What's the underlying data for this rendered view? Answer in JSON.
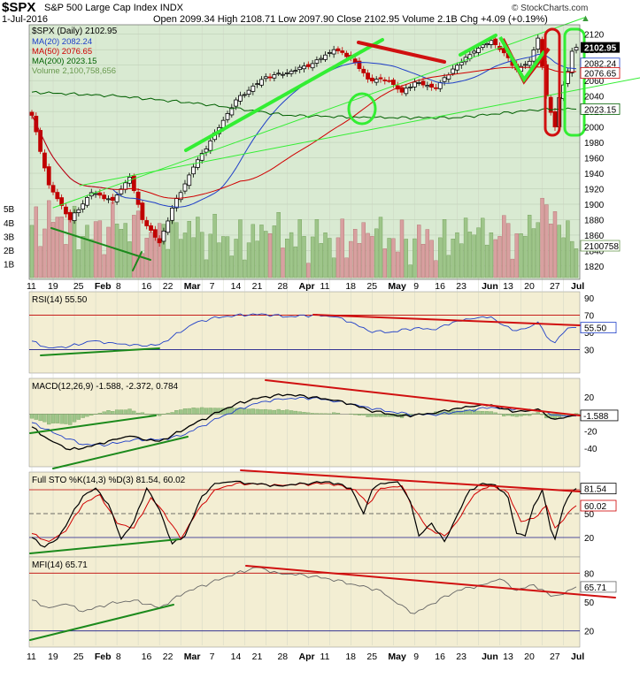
{
  "header": {
    "symbol": "$SPX",
    "name": "S&P 500 Large Cap Index",
    "exchange": "INDX",
    "date": "1-Jul-2016",
    "quote": "Open 2099.34  High 2108.71  Low 2097.90  Close 2102.95  Volume 2.1B  Chg +4.09 (+0.19%)",
    "up_arrow": "▲",
    "watermark": "© StockCharts.com"
  },
  "colors": {
    "price_bg": "#d9ead2",
    "ind_bg": "#f3eed3",
    "up": "#000000",
    "down": "#c00000",
    "ma20": "#1f3fc8",
    "ma50": "#d00000",
    "ma200": "#006000",
    "annot_green": "#33ee33",
    "annot_red": "#d01010"
  },
  "chart_data": [
    {
      "panel": "price",
      "type": "candlestick",
      "title": "$SPX (Daily) 2102.95",
      "legend": [
        {
          "name": "MA(20)",
          "label": "MA(20) 2082.24",
          "color": "#1f3fc8"
        },
        {
          "name": "MA(50)",
          "label": "MA(50) 2076.65",
          "color": "#d00000"
        },
        {
          "name": "MA(200)",
          "label": "MA(200) 2023.15",
          "color": "#006000"
        },
        {
          "name": "Volume",
          "label": "Volume 2,100,758,656",
          "color": "#6a9a50"
        }
      ],
      "ylim": [
        1805,
        2130
      ],
      "yticks": [
        1820,
        1840,
        1860,
        1880,
        1900,
        1920,
        1940,
        1960,
        1980,
        2000,
        2020,
        2040,
        2060,
        2080,
        2100,
        2120
      ],
      "close_tag": "2102.95",
      "ma_tags": [
        "2082.24",
        "2076.65",
        "2023.15"
      ],
      "volume_tag": "2100758",
      "volume_axis": [
        "5B",
        "4B",
        "3B",
        "2B",
        "1B"
      ],
      "x_labels": [
        "11",
        "19",
        "25",
        "Feb",
        "8",
        "16",
        "22",
        "Mar",
        "7",
        "14",
        "21",
        "28",
        "Apr",
        "11",
        "18",
        "25",
        "May",
        "9",
        "16",
        "23",
        "Jun",
        "13",
        "20",
        "27",
        "Jul"
      ],
      "close_anchors": [
        [
          0,
          2015
        ],
        [
          4,
          1925
        ],
        [
          9,
          1880
        ],
        [
          14,
          1915
        ],
        [
          19,
          1905
        ],
        [
          23,
          1935
        ],
        [
          26,
          1880
        ],
        [
          30,
          1850
        ],
        [
          33,
          1895
        ],
        [
          38,
          1948
        ],
        [
          42,
          1982
        ],
        [
          48,
          2035
        ],
        [
          55,
          2065
        ],
        [
          60,
          2070
        ],
        [
          66,
          2082
        ],
        [
          71,
          2100
        ],
        [
          75,
          2090
        ],
        [
          79,
          2062
        ],
        [
          84,
          2060
        ],
        [
          87,
          2045
        ],
        [
          90,
          2058
        ],
        [
          95,
          2050
        ],
        [
          99,
          2075
        ],
        [
          104,
          2098
        ],
        [
          108,
          2112
        ],
        [
          111,
          2096
        ],
        [
          114,
          2074
        ],
        [
          117,
          2085
        ],
        [
          119,
          2115
        ],
        [
          121,
          2040
        ],
        [
          123,
          2000
        ],
        [
          124,
          2038
        ],
        [
          126,
          2072
        ],
        [
          127,
          2098
        ],
        [
          128,
          2103
        ]
      ],
      "vol_anchors": [
        [
          0,
          3.8
        ],
        [
          6,
          4.4
        ],
        [
          12,
          3.0
        ],
        [
          20,
          3.9
        ],
        [
          28,
          3.3
        ],
        [
          34,
          4.0
        ],
        [
          40,
          3.3
        ],
        [
          48,
          2.8
        ],
        [
          56,
          3.2
        ],
        [
          64,
          3.0
        ],
        [
          72,
          2.9
        ],
        [
          80,
          3.0
        ],
        [
          88,
          2.8
        ],
        [
          96,
          2.9
        ],
        [
          104,
          3.1
        ],
        [
          110,
          3.0
        ],
        [
          115,
          3.2
        ],
        [
          119,
          4.0
        ],
        [
          121,
          5.3
        ],
        [
          123,
          4.8
        ],
        [
          125,
          2.9
        ],
        [
          128,
          2.1
        ]
      ],
      "ma200_anchors": [
        [
          0,
          2045
        ],
        [
          20,
          2040
        ],
        [
          40,
          2030
        ],
        [
          60,
          2015
        ],
        [
          80,
          2012
        ],
        [
          100,
          2012
        ],
        [
          120,
          2023
        ],
        [
          128,
          2023
        ]
      ]
    },
    {
      "panel": "rsi",
      "type": "line",
      "title": "RSI(14) 55.50",
      "ylim": [
        5,
        95
      ],
      "yticks": [
        30,
        50,
        70,
        90
      ],
      "levels": [
        70,
        30
      ],
      "last": "55.50",
      "anchors": [
        [
          0,
          40
        ],
        [
          4,
          32
        ],
        [
          9,
          34
        ],
        [
          14,
          40
        ],
        [
          19,
          38
        ],
        [
          26,
          34
        ],
        [
          30,
          36
        ],
        [
          33,
          45
        ],
        [
          38,
          60
        ],
        [
          42,
          66
        ],
        [
          48,
          70
        ],
        [
          55,
          71
        ],
        [
          60,
          68
        ],
        [
          66,
          70
        ],
        [
          71,
          68
        ],
        [
          75,
          62
        ],
        [
          79,
          52
        ],
        [
          84,
          50
        ],
        [
          90,
          55
        ],
        [
          95,
          53
        ],
        [
          99,
          62
        ],
        [
          104,
          66
        ],
        [
          108,
          68
        ],
        [
          111,
          58
        ],
        [
          114,
          52
        ],
        [
          117,
          56
        ],
        [
          119,
          62
        ],
        [
          121,
          45
        ],
        [
          123,
          38
        ],
        [
          124,
          45
        ],
        [
          126,
          55
        ],
        [
          128,
          55.5
        ]
      ]
    },
    {
      "panel": "macd",
      "type": "line",
      "title": "MACD(12,26,9) -1.588, -2.372, 0.784",
      "ylim": [
        -60,
        40
      ],
      "yticks": [
        -40,
        -20,
        0,
        20
      ],
      "tag": "-1.588",
      "macd_anchors": [
        [
          0,
          -15
        ],
        [
          4,
          -30
        ],
        [
          9,
          -42
        ],
        [
          14,
          -38
        ],
        [
          19,
          -30
        ],
        [
          23,
          -26
        ],
        [
          26,
          -30
        ],
        [
          30,
          -32
        ],
        [
          33,
          -25
        ],
        [
          38,
          -12
        ],
        [
          42,
          -2
        ],
        [
          48,
          12
        ],
        [
          54,
          20
        ],
        [
          60,
          23
        ],
        [
          66,
          20
        ],
        [
          71,
          16
        ],
        [
          75,
          12
        ],
        [
          79,
          5
        ],
        [
          84,
          0
        ],
        [
          87,
          -2
        ],
        [
          90,
          -1
        ],
        [
          95,
          1
        ],
        [
          99,
          6
        ],
        [
          104,
          9
        ],
        [
          108,
          11
        ],
        [
          111,
          6
        ],
        [
          114,
          3
        ],
        [
          117,
          4
        ],
        [
          119,
          6
        ],
        [
          121,
          -2
        ],
        [
          123,
          -6
        ],
        [
          124,
          -5
        ],
        [
          126,
          -3
        ],
        [
          128,
          -1.6
        ]
      ],
      "signal_anchors": [
        [
          0,
          -10
        ],
        [
          6,
          -24
        ],
        [
          12,
          -36
        ],
        [
          18,
          -36
        ],
        [
          24,
          -30
        ],
        [
          30,
          -30
        ],
        [
          35,
          -26
        ],
        [
          40,
          -14
        ],
        [
          45,
          -2
        ],
        [
          52,
          12
        ],
        [
          58,
          18
        ],
        [
          66,
          19
        ],
        [
          72,
          15
        ],
        [
          78,
          9
        ],
        [
          84,
          3
        ],
        [
          90,
          -1
        ],
        [
          96,
          0
        ],
        [
          102,
          4
        ],
        [
          108,
          8
        ],
        [
          114,
          6
        ],
        [
          119,
          4
        ],
        [
          123,
          -1
        ],
        [
          126,
          -2
        ],
        [
          128,
          -2.4
        ]
      ]
    },
    {
      "panel": "sto",
      "type": "line",
      "title": "Full STO %K(14,3) %D(3) 81.54, 60.02",
      "ylim": [
        0,
        100
      ],
      "yticks": [
        20,
        50,
        80
      ],
      "levels": [
        80,
        50,
        20
      ],
      "tags": [
        "81.54",
        "60.02"
      ],
      "k_anchors": [
        [
          0,
          20
        ],
        [
          3,
          8
        ],
        [
          6,
          18
        ],
        [
          9,
          45
        ],
        [
          12,
          72
        ],
        [
          15,
          82
        ],
        [
          18,
          62
        ],
        [
          21,
          18
        ],
        [
          24,
          40
        ],
        [
          27,
          82
        ],
        [
          30,
          55
        ],
        [
          33,
          12
        ],
        [
          36,
          22
        ],
        [
          40,
          72
        ],
        [
          43,
          88
        ],
        [
          47,
          90
        ],
        [
          52,
          88
        ],
        [
          58,
          85
        ],
        [
          64,
          88
        ],
        [
          70,
          90
        ],
        [
          75,
          82
        ],
        [
          78,
          50
        ],
        [
          80,
          80
        ],
        [
          82,
          88
        ],
        [
          86,
          90
        ],
        [
          89,
          65
        ],
        [
          91,
          22
        ],
        [
          94,
          38
        ],
        [
          97,
          15
        ],
        [
          100,
          48
        ],
        [
          103,
          80
        ],
        [
          106,
          88
        ],
        [
          109,
          86
        ],
        [
          112,
          70
        ],
        [
          114,
          25
        ],
        [
          116,
          22
        ],
        [
          118,
          60
        ],
        [
          120,
          80
        ],
        [
          122,
          30
        ],
        [
          123,
          18
        ],
        [
          125,
          58
        ],
        [
          127,
          78
        ],
        [
          128,
          81.5
        ]
      ],
      "d_anchors": [
        [
          0,
          25
        ],
        [
          4,
          15
        ],
        [
          8,
          28
        ],
        [
          12,
          62
        ],
        [
          16,
          74
        ],
        [
          20,
          38
        ],
        [
          24,
          32
        ],
        [
          28,
          70
        ],
        [
          31,
          52
        ],
        [
          35,
          18
        ],
        [
          39,
          54
        ],
        [
          43,
          80
        ],
        [
          48,
          88
        ],
        [
          58,
          86
        ],
        [
          70,
          88
        ],
        [
          76,
          80
        ],
        [
          79,
          62
        ],
        [
          82,
          82
        ],
        [
          87,
          85
        ],
        [
          90,
          55
        ],
        [
          93,
          32
        ],
        [
          97,
          22
        ],
        [
          100,
          40
        ],
        [
          104,
          74
        ],
        [
          108,
          86
        ],
        [
          112,
          76
        ],
        [
          115,
          40
        ],
        [
          118,
          44
        ],
        [
          121,
          60
        ],
        [
          123,
          32
        ],
        [
          125,
          42
        ],
        [
          127,
          56
        ],
        [
          128,
          60
        ]
      ]
    },
    {
      "panel": "mfi",
      "type": "line",
      "title": "MFI(14) 65.71",
      "ylim": [
        5,
        95
      ],
      "yticks": [
        20,
        50,
        80
      ],
      "levels": [
        80,
        20
      ],
      "last": "65.71",
      "anchors": [
        [
          0,
          52
        ],
        [
          4,
          44
        ],
        [
          8,
          48
        ],
        [
          12,
          40
        ],
        [
          18,
          48
        ],
        [
          24,
          52
        ],
        [
          30,
          44
        ],
        [
          36,
          60
        ],
        [
          42,
          70
        ],
        [
          48,
          80
        ],
        [
          53,
          86
        ],
        [
          58,
          80
        ],
        [
          64,
          78
        ],
        [
          70,
          74
        ],
        [
          76,
          68
        ],
        [
          82,
          62
        ],
        [
          86,
          48
        ],
        [
          90,
          38
        ],
        [
          94,
          48
        ],
        [
          100,
          62
        ],
        [
          106,
          68
        ],
        [
          110,
          74
        ],
        [
          114,
          62
        ],
        [
          118,
          68
        ],
        [
          122,
          56
        ],
        [
          125,
          58
        ],
        [
          128,
          65.7
        ]
      ]
    }
  ]
}
